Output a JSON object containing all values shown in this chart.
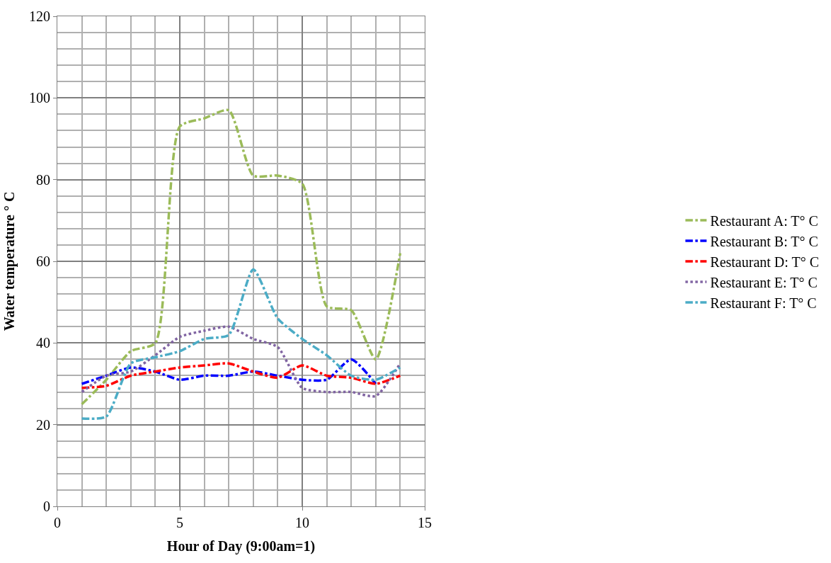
{
  "chart_data": {
    "type": "line",
    "xlabel": "Hour of Day (9:00am=1)",
    "ylabel": "Water temperature ° C",
    "x": [
      1,
      2,
      3,
      4,
      5,
      6,
      7,
      8,
      9,
      10,
      11,
      12,
      13,
      14
    ],
    "series": [
      {
        "name": "Restaurant A: T° C",
        "color": "#9bbb59",
        "line_style": "dashed",
        "values": [
          25,
          31,
          38,
          40,
          93,
          95,
          97,
          81,
          81,
          79,
          49,
          48,
          36,
          62
        ]
      },
      {
        "name": "Restaurant B: T° C",
        "color": "#0000ff",
        "line_style": "dashed",
        "values": [
          30,
          32,
          34,
          33,
          31,
          32,
          32,
          33,
          32,
          31,
          31,
          36,
          30,
          null
        ]
      },
      {
        "name": "Restaurant D: T° C",
        "color": "#ff0000",
        "line_style": "dashed",
        "values": [
          29,
          29.5,
          32,
          33,
          34,
          34.5,
          35,
          33,
          31.5,
          34.5,
          32,
          31.5,
          30,
          32
        ]
      },
      {
        "name": "Restaurant E: T° C",
        "color": "#8064a2",
        "line_style": "dotted",
        "values": [
          28,
          32,
          33,
          37,
          41.5,
          43,
          44,
          41,
          39,
          29,
          28,
          28,
          27,
          35
        ]
      },
      {
        "name": "Restaurant F: T° C",
        "color": "#4bacc6",
        "line_style": "dashed",
        "values": [
          21.5,
          22,
          35,
          36.5,
          38,
          41,
          42,
          58,
          46,
          41,
          37,
          32,
          31,
          34
        ]
      }
    ],
    "xlim": [
      0,
      15
    ],
    "xticks": [
      0,
      5,
      10,
      15
    ],
    "ylim": [
      0,
      120
    ],
    "yticks": [
      0,
      20,
      40,
      60,
      80,
      100,
      120
    ],
    "grid": true,
    "legend": "right",
    "marker": "none"
  }
}
